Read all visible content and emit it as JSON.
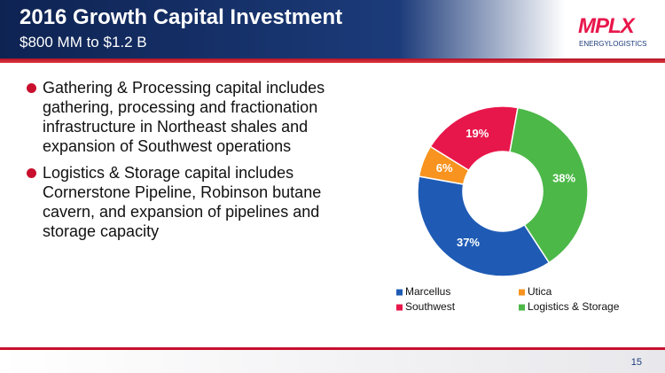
{
  "header": {
    "title": "2016 Growth Capital Investment",
    "subtitle": "$800 MM to $1.2 B",
    "logo": "MPLX",
    "logo_tagline": "ENERGYLOGISTICS"
  },
  "bullets": [
    "Gathering & Processing capital includes gathering, processing and fractionation infrastructure in Northeast shales and expansion of Southwest operations",
    "Logistics & Storage capital includes Cornerstone Pipeline, Robinson butane cavern, and expansion of pipelines and storage capacity"
  ],
  "chart_data": {
    "type": "donut",
    "categories": [
      "Marcellus",
      "Utica",
      "Southwest",
      "Logistics & Storage"
    ],
    "values": [
      37,
      6,
      19,
      38
    ],
    "value_labels": [
      "37%",
      "6%",
      "19%",
      "38%"
    ],
    "colors": [
      "#1f5bb5",
      "#f7931e",
      "#e8174b",
      "#4cb848"
    ]
  },
  "page_number": "15"
}
